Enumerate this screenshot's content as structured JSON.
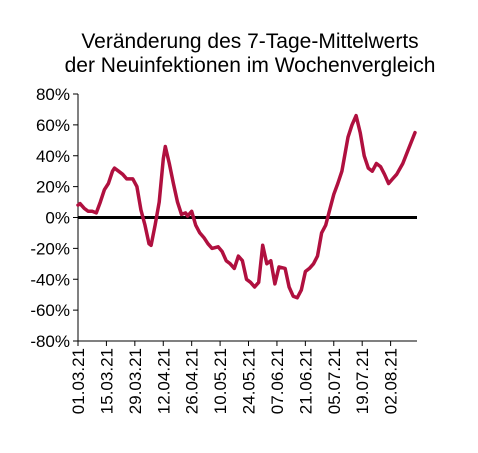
{
  "chart_data": {
    "type": "line",
    "title_line1": "Veränderung des 7-Tage-Mittelwerts",
    "title_line2": "der Neuinfektionen im Wochenvergleich",
    "xlabel": "",
    "ylabel": "",
    "ylim": [
      -80,
      80
    ],
    "yticks": [
      -80,
      -60,
      -40,
      -20,
      0,
      20,
      40,
      60,
      80
    ],
    "ytick_labels": [
      "-80%",
      "-60%",
      "-40%",
      "-20%",
      "0%",
      "20%",
      "40%",
      "60%",
      "80%"
    ],
    "xticks": [
      "01.03.21",
      "15.03.21",
      "29.03.21",
      "12.04.21",
      "26.04.21",
      "10.05.21",
      "24.05.21",
      "07.06.21",
      "21.06.21",
      "05.07.21",
      "19.07.21",
      "02.08.21"
    ],
    "x_start": "01.03.21",
    "x_end": "15.08.21",
    "line_color": "#b0103f",
    "zero_line_color": "#000000",
    "grid": false,
    "series": [
      {
        "values": [
          {
            "x": "01.03.21",
            "y": 8
          },
          {
            "x": "02.03.21",
            "y": 9
          },
          {
            "x": "04.03.21",
            "y": 6
          },
          {
            "x": "06.03.21",
            "y": 4
          },
          {
            "x": "08.03.21",
            "y": 4
          },
          {
            "x": "10.03.21",
            "y": 3
          },
          {
            "x": "12.03.21",
            "y": 10
          },
          {
            "x": "14.03.21",
            "y": 18
          },
          {
            "x": "16.03.21",
            "y": 22
          },
          {
            "x": "18.03.21",
            "y": 30
          },
          {
            "x": "19.03.21",
            "y": 32
          },
          {
            "x": "21.03.21",
            "y": 30
          },
          {
            "x": "23.03.21",
            "y": 28
          },
          {
            "x": "25.03.21",
            "y": 25
          },
          {
            "x": "28.03.21",
            "y": 25
          },
          {
            "x": "30.03.21",
            "y": 20
          },
          {
            "x": "01.04.21",
            "y": 5
          },
          {
            "x": "03.04.21",
            "y": -5
          },
          {
            "x": "05.04.21",
            "y": -17
          },
          {
            "x": "06.04.21",
            "y": -18
          },
          {
            "x": "08.04.21",
            "y": -5
          },
          {
            "x": "10.04.21",
            "y": 10
          },
          {
            "x": "12.04.21",
            "y": 38
          },
          {
            "x": "13.04.21",
            "y": 46
          },
          {
            "x": "15.04.21",
            "y": 35
          },
          {
            "x": "17.04.21",
            "y": 22
          },
          {
            "x": "19.04.21",
            "y": 10
          },
          {
            "x": "21.04.21",
            "y": 2
          },
          {
            "x": "23.04.21",
            "y": 3
          },
          {
            "x": "24.04.21",
            "y": 1
          },
          {
            "x": "26.04.21",
            "y": 4
          },
          {
            "x": "28.04.21",
            "y": -5
          },
          {
            "x": "30.04.21",
            "y": -10
          },
          {
            "x": "02.05.21",
            "y": -13
          },
          {
            "x": "04.05.21",
            "y": -17
          },
          {
            "x": "06.05.21",
            "y": -20
          },
          {
            "x": "09.05.21",
            "y": -19
          },
          {
            "x": "11.05.21",
            "y": -22
          },
          {
            "x": "13.05.21",
            "y": -28
          },
          {
            "x": "15.05.21",
            "y": -30
          },
          {
            "x": "17.05.21",
            "y": -33
          },
          {
            "x": "19.05.21",
            "y": -25
          },
          {
            "x": "21.05.21",
            "y": -28
          },
          {
            "x": "23.05.21",
            "y": -40
          },
          {
            "x": "25.05.21",
            "y": -42
          },
          {
            "x": "27.05.21",
            "y": -45
          },
          {
            "x": "29.05.21",
            "y": -42
          },
          {
            "x": "31.05.21",
            "y": -18
          },
          {
            "x": "02.06.21",
            "y": -30
          },
          {
            "x": "04.06.21",
            "y": -28
          },
          {
            "x": "06.06.21",
            "y": -43
          },
          {
            "x": "08.06.21",
            "y": -32
          },
          {
            "x": "11.06.21",
            "y": -33
          },
          {
            "x": "13.06.21",
            "y": -45
          },
          {
            "x": "15.06.21",
            "y": -51
          },
          {
            "x": "17.06.21",
            "y": -52
          },
          {
            "x": "19.06.21",
            "y": -47
          },
          {
            "x": "21.06.21",
            "y": -35
          },
          {
            "x": "23.06.21",
            "y": -33
          },
          {
            "x": "25.06.21",
            "y": -30
          },
          {
            "x": "27.06.21",
            "y": -25
          },
          {
            "x": "29.06.21",
            "y": -10
          },
          {
            "x": "01.07.21",
            "y": -5
          },
          {
            "x": "03.07.21",
            "y": 5
          },
          {
            "x": "05.07.21",
            "y": 15
          },
          {
            "x": "07.07.21",
            "y": 22
          },
          {
            "x": "09.07.21",
            "y": 30
          },
          {
            "x": "12.07.21",
            "y": 52
          },
          {
            "x": "14.07.21",
            "y": 60
          },
          {
            "x": "16.07.21",
            "y": 66
          },
          {
            "x": "18.07.21",
            "y": 55
          },
          {
            "x": "20.07.21",
            "y": 40
          },
          {
            "x": "22.07.21",
            "y": 32
          },
          {
            "x": "24.07.21",
            "y": 30
          },
          {
            "x": "26.07.21",
            "y": 35
          },
          {
            "x": "28.07.21",
            "y": 33
          },
          {
            "x": "30.07.21",
            "y": 28
          },
          {
            "x": "01.08.21",
            "y": 22
          },
          {
            "x": "03.08.21",
            "y": 25
          },
          {
            "x": "05.08.21",
            "y": 28
          },
          {
            "x": "08.08.21",
            "y": 35
          },
          {
            "x": "11.08.21",
            "y": 45
          },
          {
            "x": "14.08.21",
            "y": 55
          }
        ]
      }
    ]
  }
}
